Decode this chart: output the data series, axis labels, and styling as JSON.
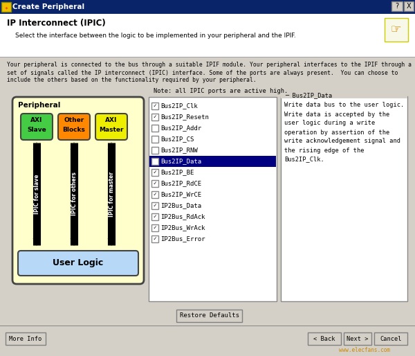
{
  "title": "Create Peripheral",
  "subtitle": "IP Interconnect (IPIC)",
  "subtitle2": "Select the interface between the logic to be implemented in your peripheral and the IPIF.",
  "description_lines": [
    "Your peripheral is connected to the bus through a suitable IPIF module. Your peripheral interfaces to the IPIF through a",
    "set of signals called the IP interconnect (IPIC) interface. Some of the ports are always present.  You can choose to",
    "include the others based on the functionality required by your peripheral."
  ],
  "note": "Note: all IPIC ports are active high.",
  "peripheral_label": "Peripheral",
  "user_logic_label": "User Logic",
  "block_labels": [
    "AXI\nSlave",
    "Other\nBlocks",
    "AXI\nMaster"
  ],
  "block_colors": [
    "#44cc44",
    "#ff8800",
    "#eeee00"
  ],
  "arrow_labels": [
    "IPIC for slave",
    "IPIC for others",
    "IPIC for master"
  ],
  "checklist_items": [
    {
      "label": "Bus2IP_Clk",
      "checked": true,
      "selected": false
    },
    {
      "label": "Bus2IP_Resetn",
      "checked": true,
      "selected": false
    },
    {
      "label": "Bus2IP_Addr",
      "checked": false,
      "selected": false
    },
    {
      "label": "Bus2IP_CS",
      "checked": false,
      "selected": false
    },
    {
      "label": "Bus2IP_RNW",
      "checked": false,
      "selected": false
    },
    {
      "label": "Bus2IP_Data",
      "checked": true,
      "selected": true
    },
    {
      "label": "Bus2IP_BE",
      "checked": true,
      "selected": false
    },
    {
      "label": "Bus2IP_RdCE",
      "checked": true,
      "selected": false
    },
    {
      "label": "Bus2IP_WrCE",
      "checked": true,
      "selected": false
    },
    {
      "label": "IP2Bus_Data",
      "checked": true,
      "selected": false
    },
    {
      "label": "IP2Bus_RdAck",
      "checked": true,
      "selected": false
    },
    {
      "label": "IP2Bus_WrAck",
      "checked": true,
      "selected": false
    },
    {
      "label": "IP2Bus_Error",
      "checked": true,
      "selected": false
    }
  ],
  "info_box_title": "Bus2IP_Data",
  "info_box_text": [
    "Write data bus to the user logic.",
    "Write data is accepted by the",
    "user logic during a write",
    "operation by assertion of the",
    "write acknowledgement signal and",
    "the rising edge of the",
    "Bus2IP_Clk."
  ],
  "bg_color": "#d4d0c8",
  "titlebar_bg": "#0a246a",
  "titlebar_fg": "#ffffff",
  "header_bg": "#ffffff",
  "peripheral_bg": "#ffffcc",
  "user_logic_bg": "#b8d8f8",
  "list_bg": "#ffffff",
  "list_sel_bg": "#000080",
  "list_sel_fg": "#ffffff",
  "info_bg": "#ffffff",
  "watermark": "www.elecfans.com",
  "btn_labels": [
    "More Info",
    "< Back",
    "Next >",
    "Cancel"
  ],
  "restore_btn": "Restore Defaults"
}
